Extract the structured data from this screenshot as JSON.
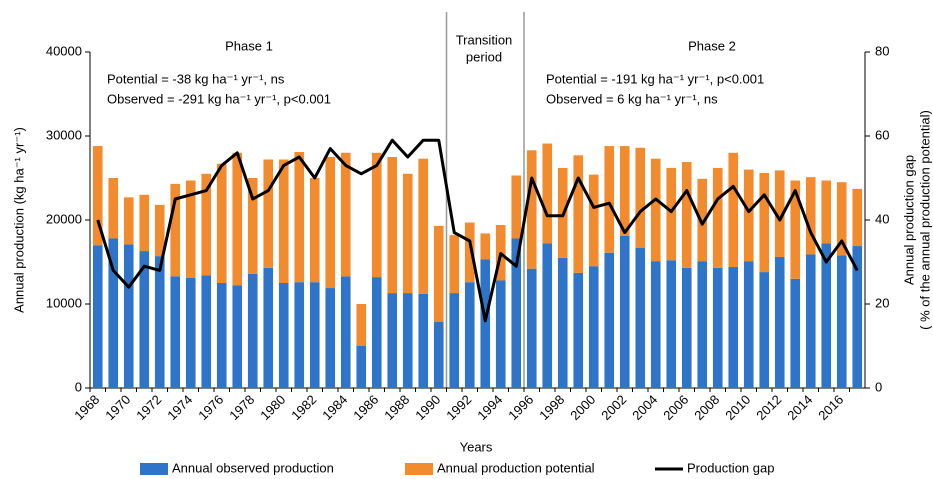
{
  "chart_data": {
    "type": "bar-line",
    "categories": [
      "1968",
      null,
      "1970",
      null,
      "1972",
      null,
      "1974",
      null,
      "1976",
      null,
      "1978",
      null,
      "1980",
      null,
      "1982",
      null,
      "1984",
      null,
      "1986",
      null,
      "1988",
      null,
      "1990",
      null,
      "1992",
      null,
      "1994",
      null,
      "1996",
      null,
      "1998",
      null,
      "2000",
      null,
      "2002",
      null,
      "2004",
      null,
      "2006",
      null,
      "2008",
      null,
      "2010",
      null,
      "2012",
      null,
      "2014",
      null,
      "2016",
      null
    ],
    "series": [
      {
        "name": "Annual observed production",
        "color": "#2e75c9",
        "type": "bar",
        "values": [
          17000,
          17800,
          17100,
          16300,
          15700,
          13300,
          13100,
          13400,
          12500,
          12200,
          13600,
          14300,
          12500,
          12600,
          12600,
          11900,
          13300,
          5000,
          13200,
          11300,
          11300,
          11200,
          7900,
          11300,
          12600,
          15300,
          12800,
          17800,
          14200,
          17200,
          15500,
          13700,
          14500,
          16100,
          18100,
          16700,
          15100,
          15200,
          14300,
          15100,
          14300,
          14400,
          15100,
          13800,
          15600,
          13000,
          15900,
          17200,
          15800,
          16900
        ]
      },
      {
        "name": "Annual production potential",
        "color": "#f28a2e",
        "type": "bar",
        "values": [
          11800,
          7200,
          5600,
          6700,
          6100,
          11000,
          11600,
          12100,
          14200,
          15800,
          11400,
          12900,
          14700,
          15500,
          12400,
          15600,
          14700,
          5000,
          14800,
          16200,
          14200,
          16100,
          11400,
          6900,
          7100,
          3100,
          6600,
          7500,
          14100,
          11900,
          10700,
          14000,
          10900,
          12700,
          10700,
          11900,
          12200,
          11000,
          12600,
          9800,
          11900,
          13600,
          10900,
          11800,
          10300,
          11700,
          9200,
          7500,
          8700,
          6800
        ]
      },
      {
        "name": "Production gap",
        "color": "#000000",
        "type": "line",
        "axis": "y2",
        "values": [
          40,
          28,
          24,
          29,
          28,
          45,
          46,
          47,
          53,
          56,
          45,
          47,
          53,
          55,
          50,
          57,
          53,
          51,
          53,
          59,
          55,
          59,
          59,
          37,
          35,
          16,
          32,
          29,
          50,
          41,
          41,
          50,
          43,
          44,
          37,
          42,
          45,
          42,
          47,
          39,
          45,
          48,
          42,
          46,
          40,
          47,
          37,
          30,
          35,
          28
        ]
      }
    ],
    "ylim": [
      0,
      40000
    ],
    "yticks": [
      0,
      10000,
      20000,
      30000,
      40000
    ],
    "y2lim": [
      0,
      80
    ],
    "y2ticks": [
      0,
      20,
      40,
      60,
      80
    ],
    "xlabel": "Years",
    "ylabel": "Annual production (kg ha⁻¹ yr⁻¹)",
    "y2label": [
      "Annual production gap",
      "( % of the annual production potential)"
    ],
    "annotations": {
      "phase1": "Phase 1",
      "transition": [
        "Transition",
        "period"
      ],
      "phase2": "Phase 2",
      "phase1_stats": [
        "Potential  = -38 kg ha⁻¹ yr⁻¹, ns",
        "Observed = -291 kg ha⁻¹ yr⁻¹, p<0.001"
      ],
      "phase2_stats": [
        "Potential  = -191 kg ha⁻¹ yr⁻¹, p<0.001",
        "Observed = 6 kg ha⁻¹ yr⁻¹, ns"
      ]
    },
    "grid": false
  }
}
